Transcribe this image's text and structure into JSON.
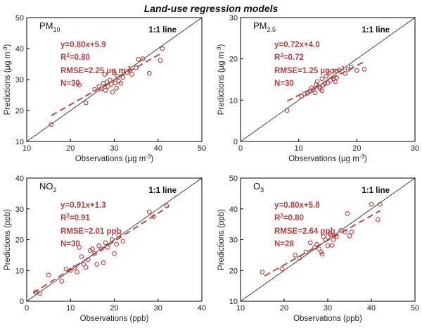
{
  "figure_title": "Land-use regression models",
  "colors": {
    "accent": "#b5403f",
    "frame": "#000000",
    "identity_line": "#444444"
  },
  "chart_data": [
    {
      "type": "scatter",
      "pollutant": "PM",
      "pollutant_sub": "10",
      "xlabel": "Observations (µg m",
      "xlabel_sup": "-3",
      "xlabel_end": ")",
      "ylabel": "Predictions (µg m",
      "ylabel_sup": "-3",
      "ylabel_end": ")",
      "xlim": [
        10,
        50
      ],
      "ylim": [
        10,
        50
      ],
      "xticks": [
        10,
        20,
        30,
        40,
        50
      ],
      "yticks": [
        10,
        20,
        30,
        40,
        50
      ],
      "identity_label": "1:1 line",
      "stats": [
        "y=0.80x+5.9",
        "R2=0.80",
        "RMSE=2.25 µg m-3",
        "N=30"
      ],
      "fit": {
        "slope": 0.8,
        "intercept": 5.9,
        "x_range": [
          15.6,
          41
        ]
      },
      "points": [
        [
          15.6,
          15.5
        ],
        [
          22,
          28.2
        ],
        [
          23.5,
          22.5
        ],
        [
          25.5,
          26.8
        ],
        [
          26.5,
          27.8
        ],
        [
          27,
          27
        ],
        [
          27.5,
          28.8
        ],
        [
          27.8,
          31.7
        ],
        [
          28,
          26.5
        ],
        [
          28.3,
          29.2
        ],
        [
          28.6,
          27.8
        ],
        [
          29,
          29.8
        ],
        [
          29.3,
          28.5
        ],
        [
          29.6,
          26
        ],
        [
          30,
          32.2
        ],
        [
          30.2,
          28.9
        ],
        [
          30.5,
          27.2
        ],
        [
          30.8,
          31
        ],
        [
          31,
          29.5
        ],
        [
          31.5,
          28.8
        ],
        [
          32,
          30.7
        ],
        [
          33,
          32.3
        ],
        [
          33.5,
          32.8
        ],
        [
          34,
          31.7
        ],
        [
          35,
          33.8
        ],
        [
          35.5,
          36.5
        ],
        [
          36.5,
          36.7
        ],
        [
          38,
          32
        ],
        [
          40.5,
          36.2
        ],
        [
          41,
          40
        ]
      ]
    },
    {
      "type": "scatter",
      "pollutant": "PM",
      "pollutant_sub": "2.5",
      "xlabel": "Observations (µg m",
      "xlabel_sup": "-3",
      "xlabel_end": ")",
      "ylabel": "Predictions (µg m",
      "ylabel_sup": "-3",
      "ylabel_end": ")",
      "xlim": [
        0,
        30
      ],
      "ylim": [
        0,
        30
      ],
      "xticks": [
        0,
        10,
        20,
        30
      ],
      "yticks": [
        0,
        10,
        20,
        30
      ],
      "identity_label": "1:1 line",
      "stats": [
        "y=0.72x+4.0",
        "R2=0.72",
        "RMSE=1.25 µg m-3",
        "N=30"
      ],
      "fit": {
        "slope": 0.72,
        "intercept": 4.0,
        "x_range": [
          8,
          21.5
        ]
      },
      "points": [
        [
          8,
          7.5
        ],
        [
          10.5,
          11
        ],
        [
          11,
          11.5
        ],
        [
          11.5,
          11.7
        ],
        [
          12,
          12.2
        ],
        [
          12.2,
          13
        ],
        [
          12.5,
          12.5
        ],
        [
          12.8,
          11.8
        ],
        [
          13,
          13.8
        ],
        [
          13.2,
          14.5
        ],
        [
          13.5,
          13.2
        ],
        [
          13.7,
          12.8
        ],
        [
          14,
          15.2
        ],
        [
          14,
          12.3
        ],
        [
          14.2,
          13.6
        ],
        [
          14.5,
          14
        ],
        [
          14.7,
          15.8
        ],
        [
          15,
          14.2
        ],
        [
          15.2,
          16.5
        ],
        [
          15.5,
          14.8
        ],
        [
          15.8,
          17
        ],
        [
          16,
          15.2
        ],
        [
          16.3,
          14.5
        ],
        [
          16.5,
          15.5
        ],
        [
          17,
          17.3
        ],
        [
          18,
          16.5
        ],
        [
          18.5,
          17.5
        ],
        [
          19,
          18
        ],
        [
          20,
          17.2
        ],
        [
          21.3,
          17.5
        ]
      ]
    },
    {
      "type": "scatter",
      "pollutant": "NO",
      "pollutant_sub": "2",
      "xlabel": "Observations (ppb)",
      "xlabel_sup": "",
      "xlabel_end": "",
      "ylabel": "Predictions (ppb)",
      "ylabel_sup": "",
      "ylabel_end": "",
      "xlim": [
        0,
        40
      ],
      "ylim": [
        0,
        40
      ],
      "xticks": [
        0,
        10,
        20,
        30,
        40
      ],
      "yticks": [
        0,
        10,
        20,
        30,
        40
      ],
      "identity_label": "1:1 line",
      "stats": [
        "y=0.91x+1.3",
        "R2=0.91",
        "RMSE=2.01 ppb",
        "N=30"
      ],
      "fit": {
        "slope": 0.91,
        "intercept": 1.3,
        "x_range": [
          1.5,
          32.5
        ]
      },
      "points": [
        [
          2,
          3
        ],
        [
          3,
          2.5
        ],
        [
          5,
          8.5
        ],
        [
          8,
          6.5
        ],
        [
          9,
          10.5
        ],
        [
          10,
          10
        ],
        [
          11,
          11
        ],
        [
          11.5,
          9.5
        ],
        [
          12,
          17.5
        ],
        [
          12.5,
          14.5
        ],
        [
          13,
          12
        ],
        [
          13.5,
          11
        ],
        [
          14,
          13.5
        ],
        [
          14.5,
          16.5
        ],
        [
          15,
          17
        ],
        [
          15.5,
          15.5
        ],
        [
          16,
          12
        ],
        [
          16.5,
          18
        ],
        [
          17,
          17
        ],
        [
          17.5,
          12.5
        ],
        [
          18,
          19
        ],
        [
          18.5,
          17.5
        ],
        [
          19.5,
          20
        ],
        [
          20,
          15.5
        ],
        [
          20.5,
          18.5
        ],
        [
          21,
          21.5
        ],
        [
          22,
          19.5
        ],
        [
          28,
          29
        ],
        [
          29,
          27.5
        ],
        [
          32,
          31
        ]
      ]
    },
    {
      "type": "scatter",
      "pollutant": "O",
      "pollutant_sub": "3",
      "xlabel": "Observations (ppb)",
      "xlabel_sup": "",
      "xlabel_end": "",
      "ylabel": "Predictions (ppb)",
      "ylabel_sup": "",
      "ylabel_end": "",
      "xlim": [
        10,
        50
      ],
      "ylim": [
        10,
        50
      ],
      "xticks": [
        10,
        20,
        30,
        40,
        50
      ],
      "yticks": [
        10,
        20,
        30,
        40,
        50
      ],
      "identity_label": "1:1 line",
      "stats": [
        "y=0.80x+5.8",
        "R2=0.80",
        "RMSE=2.64 ppb",
        "N=28"
      ],
      "fit": {
        "slope": 0.8,
        "intercept": 5.8,
        "x_range": [
          15.5,
          42
        ]
      },
      "points": [
        [
          15,
          19.5
        ],
        [
          19.5,
          20.5
        ],
        [
          22.5,
          25
        ],
        [
          23.5,
          24
        ],
        [
          25,
          26
        ],
        [
          26,
          29
        ],
        [
          27,
          27.5
        ],
        [
          27.5,
          28.5
        ],
        [
          28,
          27
        ],
        [
          28.5,
          26
        ],
        [
          28.7,
          25.3
        ],
        [
          29,
          31
        ],
        [
          29.5,
          30
        ],
        [
          30,
          28
        ],
        [
          30.5,
          32
        ],
        [
          30.7,
          31.5
        ],
        [
          31,
          28.2
        ],
        [
          31.3,
          30
        ],
        [
          31.5,
          31.3
        ],
        [
          32,
          31
        ],
        [
          33,
          33
        ],
        [
          34,
          32.5
        ],
        [
          34.5,
          38.5
        ],
        [
          35,
          31.2
        ],
        [
          35.5,
          32.5
        ],
        [
          40,
          41.5
        ],
        [
          41.5,
          36.5
        ],
        [
          42,
          41.5
        ]
      ]
    }
  ]
}
